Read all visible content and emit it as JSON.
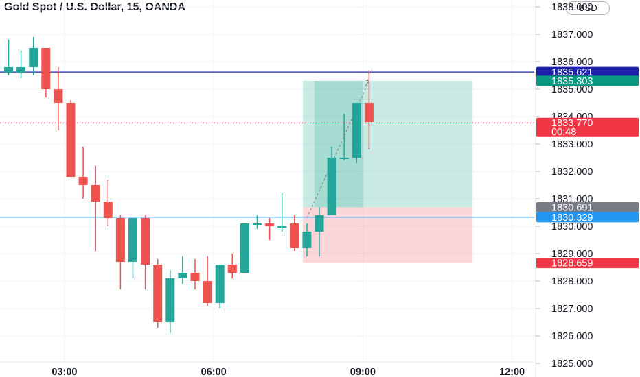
{
  "header": {
    "title": "Gold Spot / U.S. Dollar, 15, OANDA",
    "currency": "USD"
  },
  "chart_data": {
    "type": "candlestick",
    "ylim": [
      1825.0,
      1838.0
    ],
    "y_ticks": [
      "1825.000",
      "1826.000",
      "1827.000",
      "1828.000",
      "1829.000",
      "1830.000",
      "1831.000",
      "1832.000",
      "1833.000",
      "1834.000",
      "1835.000",
      "1836.000",
      "1837.000",
      "1838.000"
    ],
    "x_ticks": [
      {
        "label": "03:00",
        "bar": 4.5
      },
      {
        "label": "06:00",
        "bar": 16.5
      },
      {
        "label": "09:00",
        "bar": 28.5
      },
      {
        "label": "12:00",
        "bar": 40.5
      }
    ],
    "candles": [
      {
        "o": 1835.6,
        "h": 1836.8,
        "l": 1835.5,
        "c": 1835.8
      },
      {
        "o": 1835.6,
        "h": 1836.4,
        "l": 1835.4,
        "c": 1835.8
      },
      {
        "o": 1835.8,
        "h": 1836.9,
        "l": 1835.5,
        "c": 1836.5
      },
      {
        "o": 1836.5,
        "h": 1836.5,
        "l": 1834.7,
        "c": 1835.0
      },
      {
        "o": 1835.0,
        "h": 1835.8,
        "l": 1833.5,
        "c": 1834.5
      },
      {
        "o": 1834.5,
        "h": 1834.6,
        "l": 1831.8,
        "c": 1831.8
      },
      {
        "o": 1831.8,
        "h": 1832.9,
        "l": 1831.0,
        "c": 1831.5
      },
      {
        "o": 1831.5,
        "h": 1832.2,
        "l": 1829.1,
        "c": 1830.9
      },
      {
        "o": 1830.9,
        "h": 1831.7,
        "l": 1830.0,
        "c": 1830.3
      },
      {
        "o": 1830.3,
        "h": 1830.4,
        "l": 1827.7,
        "c": 1828.7
      },
      {
        "o": 1828.7,
        "h": 1830.3,
        "l": 1828.1,
        "c": 1830.3
      },
      {
        "o": 1830.3,
        "h": 1830.4,
        "l": 1827.7,
        "c": 1828.6
      },
      {
        "o": 1828.6,
        "h": 1828.8,
        "l": 1826.3,
        "c": 1826.5
      },
      {
        "o": 1826.5,
        "h": 1828.4,
        "l": 1826.1,
        "c": 1828.1
      },
      {
        "o": 1828.1,
        "h": 1828.9,
        "l": 1827.9,
        "c": 1828.3
      },
      {
        "o": 1828.3,
        "h": 1828.8,
        "l": 1827.7,
        "c": 1828.0
      },
      {
        "o": 1828.0,
        "h": 1828.9,
        "l": 1827.1,
        "c": 1827.2
      },
      {
        "o": 1827.2,
        "h": 1828.6,
        "l": 1827.0,
        "c": 1828.6
      },
      {
        "o": 1828.6,
        "h": 1829.0,
        "l": 1828.1,
        "c": 1828.3
      },
      {
        "o": 1828.3,
        "h": 1830.1,
        "l": 1828.3,
        "c": 1830.1
      },
      {
        "o": 1830.1,
        "h": 1830.4,
        "l": 1829.9,
        "c": 1830.1
      },
      {
        "o": 1830.1,
        "h": 1830.3,
        "l": 1829.5,
        "c": 1830.0
      },
      {
        "o": 1830.0,
        "h": 1831.2,
        "l": 1829.8,
        "c": 1830.0
      },
      {
        "o": 1830.1,
        "h": 1830.4,
        "l": 1829.1,
        "c": 1829.2
      },
      {
        "o": 1829.2,
        "h": 1830.1,
        "l": 1828.9,
        "c": 1829.8
      },
      {
        "o": 1829.8,
        "h": 1830.7,
        "l": 1828.9,
        "c": 1830.4
      },
      {
        "o": 1830.4,
        "h": 1832.9,
        "l": 1830.4,
        "c": 1832.5
      },
      {
        "o": 1832.5,
        "h": 1834.1,
        "l": 1832.4,
        "c": 1832.5
      },
      {
        "o": 1832.5,
        "h": 1834.5,
        "l": 1832.3,
        "c": 1834.5
      },
      {
        "o": 1834.5,
        "h": 1835.7,
        "l": 1832.8,
        "c": 1833.8
      }
    ],
    "position": {
      "start_bar": 23.5,
      "end_bar": 37.5,
      "entry": 1830.691,
      "target": 1835.303,
      "stop": 1828.659,
      "filled_end_bar": 28.5
    },
    "horizontal_lines": [
      {
        "price": 1835.621,
        "color": "#1e22aa"
      },
      {
        "price": 1830.329,
        "color": "#5fb5ea"
      }
    ],
    "price_labels": [
      {
        "text": "1835.621",
        "price": 1835.621,
        "color": "#1e22aa"
      },
      {
        "text": "1835.303",
        "price": 1835.303,
        "color": "#089981"
      },
      {
        "text": "1833.770",
        "sub": "00:48",
        "price": 1833.77,
        "color": "#f23645"
      },
      {
        "text": "1830.691",
        "price": 1830.691,
        "color": "#787b86"
      },
      {
        "text": "1830.329",
        "price": 1830.329,
        "color": "#2196f3"
      },
      {
        "text": "1828.659",
        "price": 1828.659,
        "color": "#f23645"
      }
    ],
    "last_price": 1833.77,
    "colors": {
      "up": "#26a69a",
      "down": "#ef5350",
      "target_zone": "rgba(8,153,129,0.22)",
      "stop_zone": "rgba(242,54,69,0.20)",
      "grid": "#f0f3fa"
    }
  }
}
